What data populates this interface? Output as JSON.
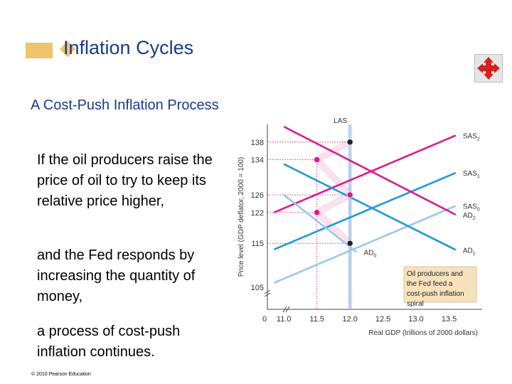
{
  "slide": {
    "title": "Inflation Cycles",
    "subheading": "A Cost-Push Inflation Process",
    "paragraphs": [
      "If the oil producers raise the price of oil to try to keep its relative price higher,",
      "and the Fed responds by increasing the quantity of money,",
      "a process of cost-push inflation continues."
    ],
    "copyright": "© 2010 Pearson Education",
    "nav_icon": "four-arrow-move-icon"
  },
  "colors": {
    "title": "#1b3a8a",
    "accent": "#f0c46c",
    "las": "#9cc8e8",
    "ad": "#d81b8c",
    "sas": "#1f9ad6",
    "sas_light": "#9cc8e8",
    "ad_light": "#f3a6cc",
    "note_bg": "#f6e2bc"
  },
  "chart_data": {
    "type": "line",
    "xlabel": "Real GDP (trillions of 2000 dollars)",
    "ylabel": "Price level (GDP deflator, 2000 = 100)",
    "x_ticks": [
      "0",
      "11.0",
      "11.5",
      "12.0",
      "12.5",
      "13.0",
      "13.5"
    ],
    "y_ticks": [
      "105",
      "115",
      "122",
      "126",
      "134",
      "138"
    ],
    "xlim": [
      10.75,
      14.0
    ],
    "ylim": [
      100,
      142
    ],
    "series": [
      {
        "name": "LAS",
        "label": "LAS",
        "sub": "",
        "style": "light-blue",
        "x": [
          12.0,
          12.0
        ],
        "y": [
          100,
          142
        ]
      },
      {
        "name": "SAS2",
        "label": "SAS",
        "sub": "2",
        "style": "magenta",
        "x": [
          10.85,
          13.6
        ],
        "y": [
          122.0,
          139.5
        ]
      },
      {
        "name": "SAS1",
        "label": "SAS",
        "sub": "1",
        "style": "blue",
        "x": [
          10.85,
          13.6
        ],
        "y": [
          113.6,
          131.0
        ]
      },
      {
        "name": "SAS0",
        "label": "SAS",
        "sub": "0",
        "style": "light-blue",
        "x": [
          10.85,
          13.6
        ],
        "y": [
          106.0,
          123.5
        ]
      },
      {
        "name": "AD2",
        "label": "AD",
        "sub": "2",
        "style": "magenta",
        "x": [
          11.0,
          13.6
        ],
        "y": [
          141.5,
          121.5
        ]
      },
      {
        "name": "AD1",
        "label": "AD",
        "sub": "1",
        "style": "blue",
        "x": [
          11.0,
          13.6
        ],
        "y": [
          133.0,
          113.5
        ]
      },
      {
        "name": "AD0",
        "label": "AD",
        "sub": "0",
        "style": "light-blue",
        "x": [
          11.0,
          12.1
        ],
        "y": [
          126.0,
          113.0
        ]
      }
    ],
    "points": [
      {
        "name": "point-12.0-115",
        "x": 12.0,
        "y": 115,
        "color": "black"
      },
      {
        "name": "point-11.5-122",
        "x": 11.5,
        "y": 122,
        "color": "magenta"
      },
      {
        "name": "point-12.0-126",
        "x": 12.0,
        "y": 126,
        "color": "magenta"
      },
      {
        "name": "point-11.5-134",
        "x": 11.5,
        "y": 134,
        "color": "magenta"
      },
      {
        "name": "point-12.0-138",
        "x": 12.0,
        "y": 138,
        "color": "black"
      }
    ],
    "guides_y": [
      138,
      134,
      126,
      122,
      115
    ],
    "guides_x": [
      11.5,
      12.0
    ],
    "annotation": "Oil producers and the Fed feed a cost-push inflation spiral"
  }
}
